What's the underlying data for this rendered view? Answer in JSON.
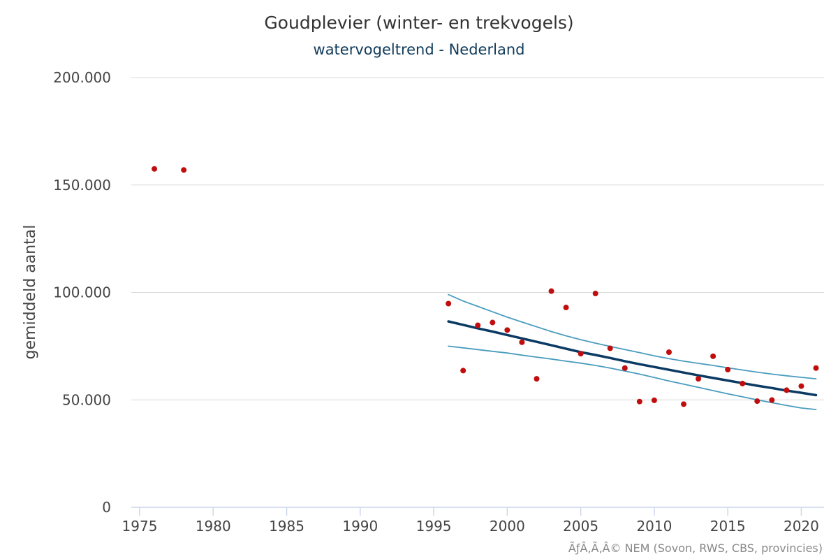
{
  "chart_data": {
    "type": "scatter",
    "title": "Goudplevier (winter- en trekvogels)",
    "subtitle": "watervogeltrend - Nederland",
    "ylabel": "gemiddeld aantal",
    "xlabel": "",
    "credit": "ÃƒÂ‚Ã‚Â© NEM (Sovon, RWS, CBS, provincies)",
    "xlim": [
      1975,
      2021.5
    ],
    "ylim": [
      0,
      200000
    ],
    "x_ticks": [
      1975,
      1980,
      1985,
      1990,
      1995,
      2000,
      2005,
      2010,
      2015,
      2020
    ],
    "y_ticks": [
      0,
      50000,
      100000,
      150000,
      200000
    ],
    "y_tick_labels": [
      "0",
      "50.000",
      "100.000",
      "150.000",
      "200.000"
    ],
    "grid": true,
    "colors": {
      "points": "#c00d0d",
      "trend": "#0b3a63",
      "band": "#4a9cbf",
      "title": "#333333",
      "subtitle": "#0f3a5a"
    },
    "series": [
      {
        "kind": "points",
        "x": [
          1976,
          1978,
          1996,
          1997,
          1998,
          1999,
          2000,
          2001,
          2002,
          2003,
          2004,
          2005,
          2006,
          2007,
          2008,
          2009,
          2010,
          2011,
          2012,
          2013,
          2014,
          2015,
          2016,
          2017,
          2018,
          2019,
          2020,
          2021
        ],
        "y": [
          157500,
          157000,
          94800,
          63600,
          84700,
          86000,
          82500,
          76800,
          59800,
          100600,
          93000,
          71500,
          99500,
          74000,
          64800,
          49200,
          49800,
          72200,
          48000,
          59800,
          70300,
          64100,
          57600,
          49400,
          49900,
          54500,
          56400,
          64800
        ]
      },
      {
        "kind": "trend",
        "x": [
          1996,
          1997,
          1998,
          1999,
          2000,
          2001,
          2002,
          2003,
          2004,
          2005,
          2006,
          2007,
          2008,
          2009,
          2010,
          2011,
          2012,
          2013,
          2014,
          2015,
          2016,
          2017,
          2018,
          2019,
          2020,
          2021
        ],
        "y": [
          86500,
          84900,
          83300,
          81800,
          80200,
          78600,
          77000,
          75400,
          73800,
          72200,
          70900,
          69500,
          68000,
          66600,
          65300,
          64000,
          62700,
          61400,
          60200,
          59000,
          57800,
          56600,
          55500,
          54300,
          53300,
          52200
        ]
      },
      {
        "kind": "upper",
        "x": [
          1996,
          1997,
          1998,
          1999,
          2000,
          2001,
          2002,
          2003,
          2004,
          2005,
          2006,
          2007,
          2008,
          2009,
          2010,
          2011,
          2012,
          2013,
          2014,
          2015,
          2016,
          2017,
          2018,
          2019,
          2020,
          2021
        ],
        "y": [
          99000,
          96000,
          93500,
          91000,
          88500,
          86200,
          84000,
          81800,
          79800,
          78000,
          76400,
          74900,
          73400,
          72000,
          70500,
          69200,
          68000,
          67000,
          66000,
          64900,
          63900,
          62900,
          62000,
          61200,
          60500,
          59800
        ]
      },
      {
        "kind": "lower",
        "x": [
          1996,
          1997,
          1998,
          1999,
          2000,
          2001,
          2002,
          2003,
          2004,
          2005,
          2006,
          2007,
          2008,
          2009,
          2010,
          2011,
          2012,
          2013,
          2014,
          2015,
          2016,
          2017,
          2018,
          2019,
          2020,
          2021
        ],
        "y": [
          75000,
          74200,
          73400,
          72600,
          71800,
          70800,
          69900,
          69000,
          68000,
          67100,
          66000,
          64800,
          63400,
          62000,
          60400,
          58800,
          57300,
          55800,
          54300,
          52800,
          51400,
          50000,
          48700,
          47400,
          46200,
          45500
        ]
      }
    ]
  }
}
